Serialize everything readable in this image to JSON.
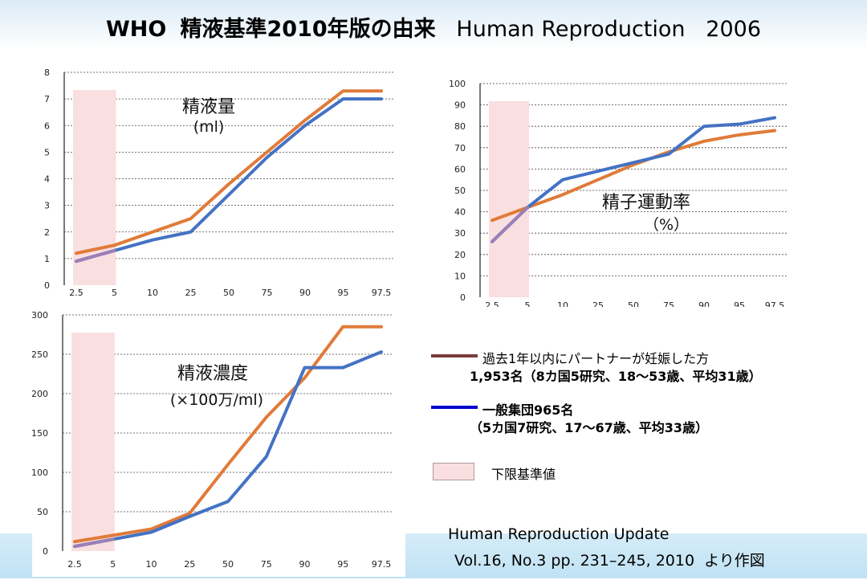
{
  "title": {
    "prefix": "WHO",
    "jp": "精液基準2010年版の由来",
    "en": "Human Reproduction",
    "year": "2006"
  },
  "colors": {
    "fertile": "#e07b39",
    "general": "#4472c4",
    "overlap": "#9b7fb6",
    "lower_ref_fill": "#f9dfe0",
    "legend_fertile_line": "#7b3a3a",
    "legend_general_line": "#0000cc"
  },
  "chart_data": [
    {
      "type": "line",
      "id": "volume",
      "title": "精液量",
      "subtitle": "(ml)",
      "categories": [
        "2.5",
        "5",
        "10",
        "25",
        "50",
        "75",
        "90",
        "95",
        "97.5"
      ],
      "ylim": [
        0,
        8
      ],
      "yticks": [
        0,
        1,
        2,
        3,
        4,
        5,
        6,
        7,
        8
      ],
      "grid": true,
      "lower_ref_band": [
        "2.5",
        "5"
      ],
      "series": [
        {
          "name": "過去1年以内にパートナーが妊娠した方",
          "values": [
            1.2,
            1.5,
            2.0,
            2.5,
            3.8,
            5.0,
            6.2,
            7.3,
            7.3
          ]
        },
        {
          "name": "一般集団",
          "values": [
            0.9,
            1.3,
            1.7,
            2.0,
            3.4,
            4.8,
            6.0,
            7.0,
            7.0
          ]
        }
      ]
    },
    {
      "type": "line",
      "id": "motility",
      "title": "精子運動率",
      "subtitle": "（%）",
      "categories": [
        "2.5",
        "5",
        "10",
        "25",
        "50",
        "75",
        "90",
        "95",
        "97.5"
      ],
      "ylim": [
        0,
        100
      ],
      "yticks": [
        0,
        10,
        20,
        30,
        40,
        50,
        60,
        70,
        80,
        90,
        100
      ],
      "grid": true,
      "lower_ref_band": [
        "2.5",
        "5"
      ],
      "series": [
        {
          "name": "過去1年以内にパートナーが妊娠した方",
          "values": [
            36,
            42,
            48,
            55,
            62,
            68,
            73,
            76,
            78
          ]
        },
        {
          "name": "一般集団",
          "values": [
            26,
            42,
            55,
            59,
            63,
            67,
            80,
            81,
            84
          ]
        }
      ]
    },
    {
      "type": "line",
      "id": "concentration",
      "title": "精液濃度",
      "subtitle": "(×100万/ml)",
      "categories": [
        "2.5",
        "5",
        "10",
        "25",
        "50",
        "75",
        "90",
        "95",
        "97.5"
      ],
      "ylim": [
        0,
        300
      ],
      "yticks": [
        0,
        50,
        100,
        150,
        200,
        250,
        300
      ],
      "grid": true,
      "lower_ref_band": [
        "2.5",
        "5"
      ],
      "series": [
        {
          "name": "過去1年以内にパートナーが妊娠した方",
          "values": [
            12,
            20,
            28,
            48,
            110,
            170,
            220,
            285,
            285
          ]
        },
        {
          "name": "一般集団",
          "values": [
            6,
            15,
            24,
            44,
            63,
            120,
            233,
            233,
            253
          ]
        }
      ]
    }
  ],
  "legend": {
    "fertile_label": "過去1年以内にパートナーが妊娠した方",
    "fertile_detail": "1,953名（8カ国5研究、18～53歳、平均31歳）",
    "general_label": "一般集団965名",
    "general_detail": "（5カ国7研究、17～67歳、平均33歳）",
    "lower_ref_label": "下限基準値"
  },
  "source": {
    "line1": "Human Reproduction Update",
    "line2": "Vol.16, No.3 pp. 231–245, 2010",
    "line2_suffix": "より作図"
  }
}
